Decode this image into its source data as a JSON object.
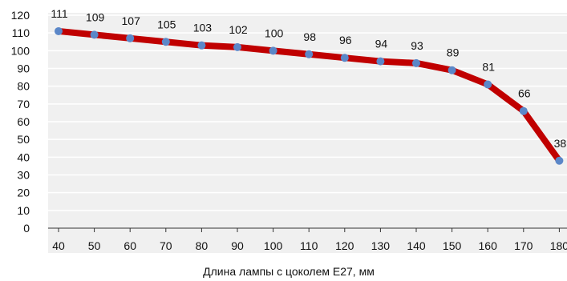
{
  "chart_data": {
    "type": "line",
    "title": "",
    "xlabel": "Длина лампы с цоколем E27, мм",
    "ylabel": "",
    "x": [
      40,
      50,
      60,
      70,
      80,
      90,
      100,
      110,
      120,
      130,
      140,
      150,
      160,
      170,
      180
    ],
    "series": [
      {
        "values": [
          111,
          109,
          107,
          105,
          103,
          102,
          100,
          98,
          96,
          94,
          93,
          89,
          81,
          66,
          38
        ]
      }
    ],
    "ylim": [
      0,
      120
    ],
    "y_ticks": [
      0,
      10,
      20,
      30,
      40,
      50,
      60,
      70,
      80,
      90,
      100,
      110,
      120
    ],
    "grid": true,
    "colors": {
      "line": "#c00000",
      "marker": "#5b87c8",
      "plot_background": "#f0f0f0",
      "grid": "#ffffff"
    }
  }
}
